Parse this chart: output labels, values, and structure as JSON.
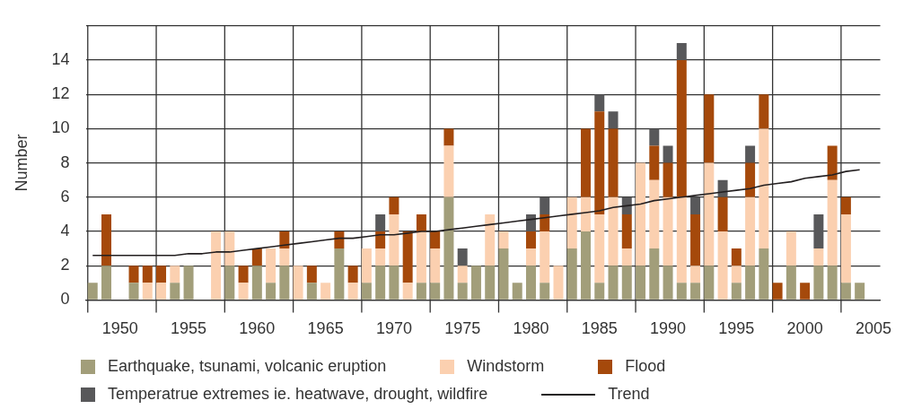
{
  "chart_data": {
    "type": "bar",
    "stacked": true,
    "ylabel": "Number",
    "categories": [
      null,
      null,
      "1950",
      null,
      null,
      null,
      null,
      "1955",
      null,
      null,
      null,
      null,
      "1960",
      null,
      null,
      null,
      null,
      "1965",
      null,
      null,
      null,
      null,
      "1970",
      null,
      null,
      null,
      null,
      "1975",
      null,
      null,
      null,
      null,
      "1980",
      null,
      null,
      null,
      null,
      "1985",
      null,
      null,
      null,
      null,
      "1990",
      null,
      null,
      null,
      null,
      "1995",
      null,
      null,
      null,
      null,
      "2000",
      null,
      null,
      null,
      null,
      "2005"
    ],
    "series": [
      {
        "name": "Earthquake, tsunami, volcanic eruption",
        "color": "#a29e7a",
        "values": [
          1,
          2,
          0,
          1,
          0,
          0,
          1,
          2,
          0,
          0,
          2,
          0,
          2,
          1,
          2,
          0,
          1,
          0,
          3,
          0,
          1,
          2,
          2,
          0,
          1,
          1,
          6,
          1,
          2,
          2,
          3,
          1,
          2,
          1,
          0,
          3,
          4,
          1,
          2,
          2,
          2,
          3,
          2,
          1,
          1,
          2,
          0,
          1,
          2,
          3,
          0,
          2,
          0,
          2,
          2,
          1,
          1,
          null
        ]
      },
      {
        "name": "Windstorm",
        "color": "#fbd0b0",
        "values": [
          0,
          0,
          0,
          0,
          1,
          1,
          1,
          0,
          0,
          4,
          2,
          1,
          0,
          2,
          1,
          2,
          0,
          1,
          0,
          1,
          2,
          1,
          3,
          1,
          3,
          2,
          3,
          1,
          0,
          3,
          1,
          0,
          1,
          3,
          2,
          3,
          2,
          4,
          4,
          1,
          6,
          4,
          4,
          5,
          1,
          6,
          4,
          1,
          4,
          7,
          0,
          2,
          0,
          1,
          5,
          4,
          0,
          null
        ]
      },
      {
        "name": "Flood",
        "color": "#a5490b",
        "values": [
          0,
          3,
          0,
          1,
          1,
          1,
          0,
          0,
          0,
          0,
          0,
          1,
          1,
          0,
          1,
          0,
          1,
          0,
          1,
          1,
          0,
          1,
          1,
          3,
          1,
          1,
          1,
          0,
          0,
          0,
          0,
          0,
          1,
          1,
          0,
          0,
          4,
          6,
          4,
          2,
          0,
          2,
          2,
          8,
          3,
          4,
          2,
          1,
          2,
          2,
          1,
          0,
          1,
          0,
          2,
          1,
          0,
          null
        ]
      },
      {
        "name": "Temperatrue extremes ie. heatwave, drought, wildfire",
        "color": "#58585a",
        "values": [
          0,
          0,
          0,
          0,
          0,
          0,
          0,
          0,
          0,
          0,
          0,
          0,
          0,
          0,
          0,
          0,
          0,
          0,
          0,
          0,
          0,
          1,
          0,
          0,
          0,
          0,
          0,
          1,
          0,
          0,
          0,
          0,
          1,
          1,
          0,
          0,
          0,
          1,
          1,
          1,
          0,
          1,
          1,
          1,
          1,
          0,
          1,
          0,
          1,
          0,
          0,
          0,
          0,
          2,
          0,
          0,
          0,
          null
        ]
      },
      {
        "name": "Trend",
        "type": "line",
        "color": "#231f20",
        "values": [
          2.6,
          2.6,
          2.6,
          2.6,
          2.6,
          2.6,
          2.6,
          2.7,
          2.7,
          2.8,
          2.8,
          2.9,
          3.0,
          3.1,
          3.2,
          3.3,
          3.4,
          3.5,
          3.6,
          3.6,
          3.7,
          3.8,
          3.8,
          3.9,
          4.0,
          4.0,
          4.1,
          4.2,
          4.3,
          4.4,
          4.5,
          4.6,
          4.7,
          4.8,
          4.9,
          5.0,
          5.1,
          5.2,
          5.4,
          5.5,
          5.6,
          5.8,
          5.9,
          6.0,
          6.1,
          6.2,
          6.3,
          6.4,
          6.5,
          6.7,
          6.8,
          6.9,
          7.1,
          7.2,
          7.3,
          7.5,
          7.6,
          null
        ]
      }
    ],
    "ylim": [
      0,
      16
    ],
    "yticks": [
      0,
      2,
      4,
      6,
      8,
      10,
      12,
      14,
      {
        "value": 16,
        "label": null
      }
    ],
    "grid": true,
    "legend": "bottom",
    "marker": "none",
    "line_style": "solid"
  }
}
